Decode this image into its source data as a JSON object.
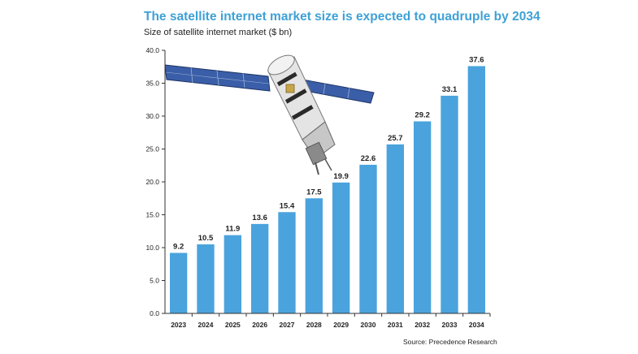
{
  "chart_data": {
    "type": "bar",
    "title": "The satellite internet market size is expected to quadruple by 2034",
    "subtitle": "Size of satellite internet market ($ bn)",
    "source": "Source: Precedence Research",
    "categories": [
      "2023",
      "2024",
      "2025",
      "2026",
      "2027",
      "2028",
      "2029",
      "2030",
      "2031",
      "2032",
      "2033",
      "2034"
    ],
    "values": [
      9.2,
      10.5,
      11.9,
      13.6,
      15.4,
      17.5,
      19.9,
      22.6,
      25.7,
      29.2,
      33.1,
      37.6
    ],
    "value_labels": [
      "9.2",
      "10.5",
      "11.9",
      "13.6",
      "15.4",
      "17.5",
      "19.9",
      "22.6",
      "25.7",
      "29.2",
      "33.1",
      "37.6"
    ],
    "ylim": [
      0,
      40
    ],
    "yticks": [
      "0.0",
      "5.0",
      "10.0",
      "15.0",
      "20.0",
      "25.0",
      "30.0",
      "35.0",
      "40.0"
    ],
    "ytick_values": [
      0,
      5,
      10,
      15,
      20,
      25,
      30,
      35,
      40
    ],
    "bar_color": "#4aa3dd",
    "grid": false,
    "legend": "none"
  },
  "decoration": {
    "image": "satellite-illustration"
  }
}
